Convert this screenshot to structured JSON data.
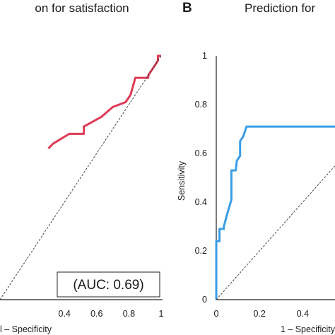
{
  "chart_data": [
    {
      "type": "line",
      "panel_letter": "",
      "title": "on for satisfaction",
      "xlabel": "l – Specificity",
      "ylabel": "",
      "xlim": [
        0,
        1
      ],
      "ylim": [
        0,
        1
      ],
      "x_tick_labels": [
        "0.4",
        "0.6",
        "0.8",
        "1"
      ],
      "x_ticks": [
        0.4,
        0.6,
        0.8,
        1
      ],
      "y_ticks": [
        0,
        0.2,
        0.4,
        0.6,
        0.8,
        1
      ],
      "y_tick_labels": [],
      "annotation": "(AUC: 0.69)",
      "series": [
        {
          "color": "#e03a55",
          "x": [
            0.3,
            0.33,
            0.43,
            0.43,
            0.52,
            0.52,
            0.63,
            0.7,
            0.78,
            0.81,
            0.84,
            0.92,
            0.92,
            0.96,
            0.96,
            0.98,
            0.98,
            1.0
          ],
          "y": [
            0.62,
            0.64,
            0.68,
            0.68,
            0.68,
            0.71,
            0.75,
            0.79,
            0.81,
            0.84,
            0.91,
            0.91,
            0.92,
            0.96,
            0.96,
            0.98,
            1.0,
            1.0
          ]
        },
        {
          "color": "#333333",
          "dashed": true,
          "x": [
            0,
            1
          ],
          "y": [
            0,
            1
          ]
        }
      ]
    },
    {
      "type": "line",
      "panel_letter": "B",
      "title": "Prediction for",
      "xlabel": "1 – Specificity",
      "ylabel": "Sensitivity",
      "xlim": [
        0,
        1
      ],
      "ylim": [
        0,
        1
      ],
      "x_tick_labels": [
        "0",
        "0.2",
        "0.4"
      ],
      "x_ticks": [
        0,
        0.2,
        0.4
      ],
      "y_ticks": [
        0,
        0.2,
        0.4,
        0.6,
        0.8,
        1
      ],
      "y_tick_labels": [
        "0",
        "0.2",
        "0.4",
        "0.6",
        "0.8",
        "1"
      ],
      "series": [
        {
          "color": "#3a9ee6",
          "x": [
            0,
            0,
            0.015,
            0.015,
            0.035,
            0.035,
            0.05,
            0.07,
            0.07,
            0.09,
            0.095,
            0.11,
            0.11,
            0.125,
            0.14,
            0.2,
            0.4,
            0.6
          ],
          "y": [
            0,
            0.24,
            0.24,
            0.29,
            0.29,
            0.3,
            0.35,
            0.41,
            0.53,
            0.53,
            0.57,
            0.59,
            0.65,
            0.67,
            0.71,
            0.71,
            0.71,
            0.71
          ]
        },
        {
          "color": "#333333",
          "dashed": true,
          "x": [
            0,
            1
          ],
          "y": [
            0,
            1
          ]
        }
      ]
    }
  ]
}
